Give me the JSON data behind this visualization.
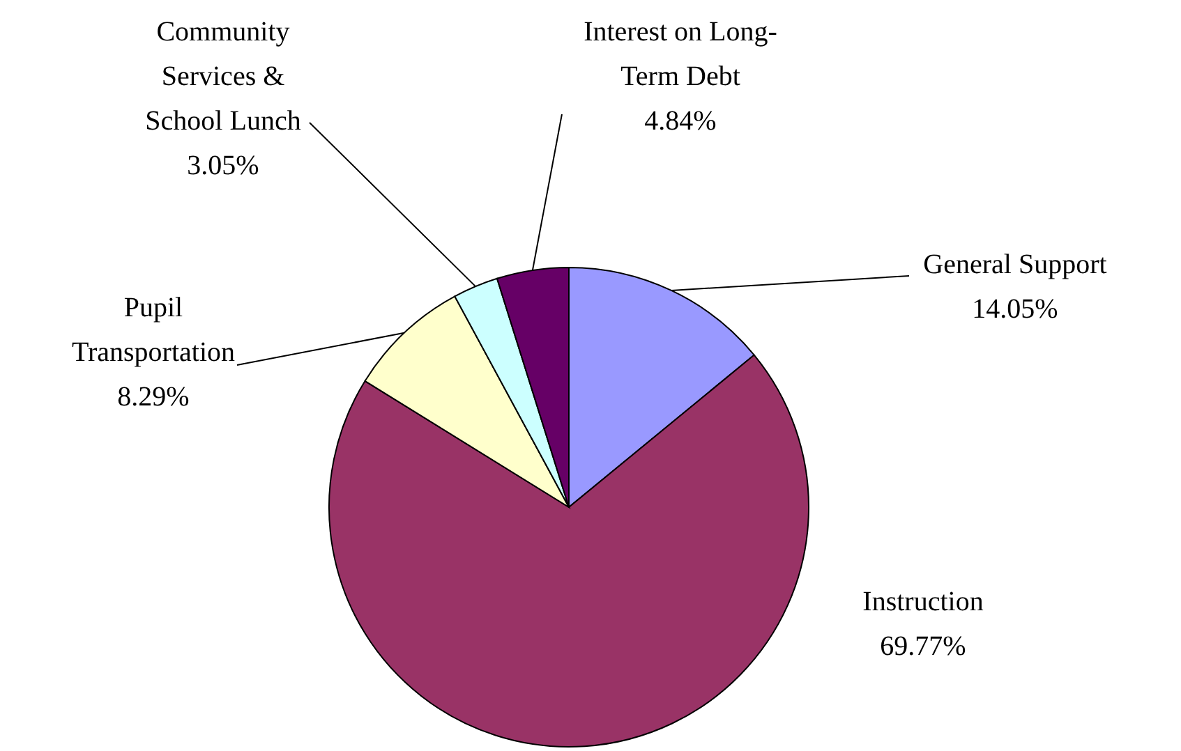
{
  "chart_data": {
    "type": "pie",
    "categories": [
      "General Support",
      "Instruction",
      "Pupil Transportation",
      "Community Services & School Lunch",
      "Interest on Long-Term Debt"
    ],
    "values": [
      14.05,
      69.77,
      8.29,
      3.05,
      4.84
    ],
    "value_labels": [
      "14.05%",
      "69.77%",
      "8.29%",
      "3.05%",
      "4.84%"
    ],
    "colors": [
      "#9999ff",
      "#993366",
      "#ffffcc",
      "#ccffff",
      "#660066"
    ]
  }
}
